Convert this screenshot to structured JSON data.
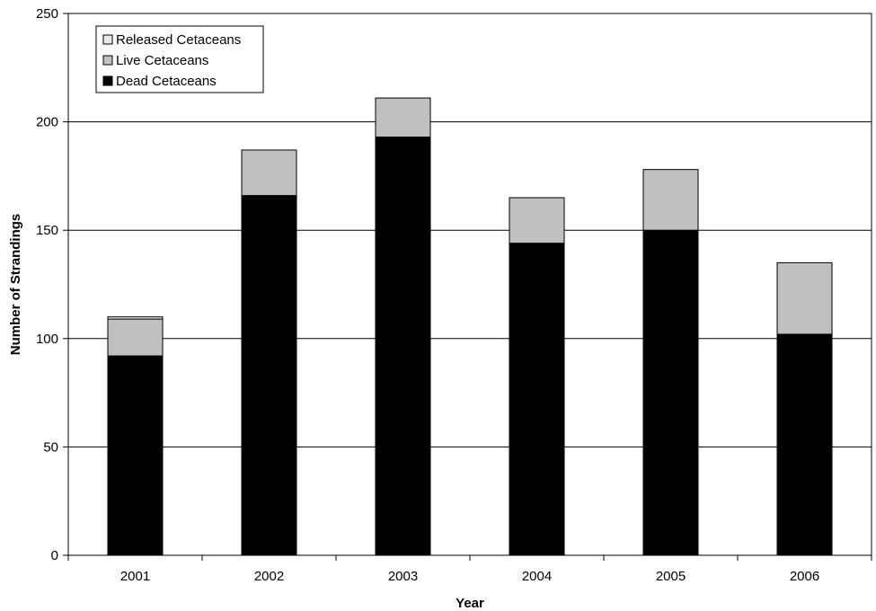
{
  "chart_data": {
    "type": "bar",
    "stacked": true,
    "categories": [
      "2001",
      "2002",
      "2003",
      "2004",
      "2005",
      "2006"
    ],
    "series": [
      {
        "name": "Dead Cetaceans",
        "values": [
          92,
          166,
          193,
          144,
          150,
          102
        ],
        "color": "#000000"
      },
      {
        "name": "Live Cetaceans",
        "values": [
          17,
          21,
          18,
          21,
          28,
          33
        ],
        "color": "#c0c0c0"
      },
      {
        "name": "Released Cetaceans",
        "values": [
          1,
          0,
          0,
          0,
          0,
          0
        ],
        "color": "#e8e8e8"
      }
    ],
    "legend_order": [
      "Released Cetaceans",
      "Live Cetaceans",
      "Dead Cetaceans"
    ],
    "xlabel": "Year",
    "ylabel": "Number of Strandings",
    "ylim": [
      0,
      250
    ],
    "yticks": [
      0,
      50,
      100,
      150,
      200,
      250
    ],
    "grid": true,
    "legend_position": "top-left"
  }
}
